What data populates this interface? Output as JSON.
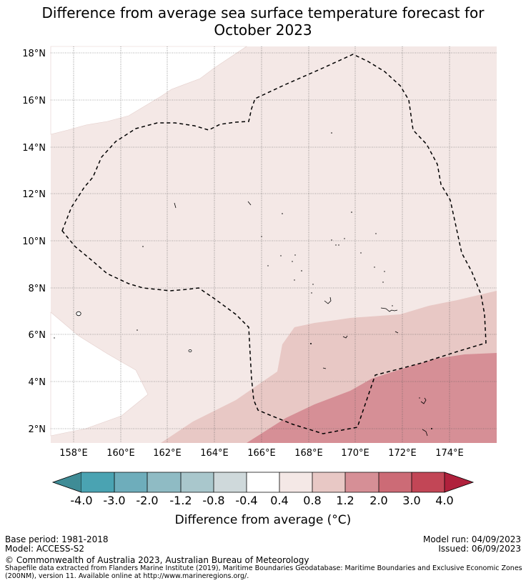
{
  "title_line1": "Difference from average sea surface temperature forecast for",
  "title_line2": "October 2023",
  "map": {
    "lat_ticks": [
      "18°N",
      "16°N",
      "14°N",
      "12°N",
      "10°N",
      "8°N",
      "6°N",
      "4°N",
      "2°N"
    ],
    "lon_ticks": [
      "158°E",
      "160°E",
      "162°E",
      "164°E",
      "166°E",
      "168°E",
      "170°E",
      "172°E",
      "174°E"
    ],
    "colors": {
      "band_0_4_to_0_8": "#f4e8e6",
      "band_0_8_to_1_2": "#e8c8c5",
      "band_1_2_to_2_0": "#d68f96",
      "land": "#ffffff"
    },
    "eez_boundary": "dashed"
  },
  "colorbar": {
    "ticks": [
      "-4.0",
      "-3.0",
      "-2.0",
      "-1.2",
      "-0.8",
      "-0.4",
      "0.4",
      "0.8",
      "1.2",
      "2.0",
      "3.0",
      "4.0"
    ],
    "colors": [
      "#3f8c96",
      "#4aa3b2",
      "#6eadbb",
      "#8fbbc4",
      "#a9c7cc",
      "#cfd9db",
      "#ffffff",
      "#f4e8e6",
      "#e8c8c5",
      "#d68f96",
      "#cc6b76",
      "#c24656",
      "#b0213c"
    ],
    "label": "Difference from average (°C)"
  },
  "footer": {
    "base_period": "Base period: 1981-2018",
    "model": "Model: ACCESS-S2",
    "model_run": "Model run: 04/09/2023",
    "issued": "Issued: 06/09/2023",
    "copyright": "© Commonwealth of Australia 2023, Australian Bureau of Meteorology",
    "source_line1": "Shapefile data extracted from Flanders Marine Institute (2019), Maritime Boundaries Geodatabase: Maritime Boundaries and Exclusive Economic Zones",
    "source_line2": "(200NM), version 11. Available online at http://www.marineregions.org/."
  }
}
